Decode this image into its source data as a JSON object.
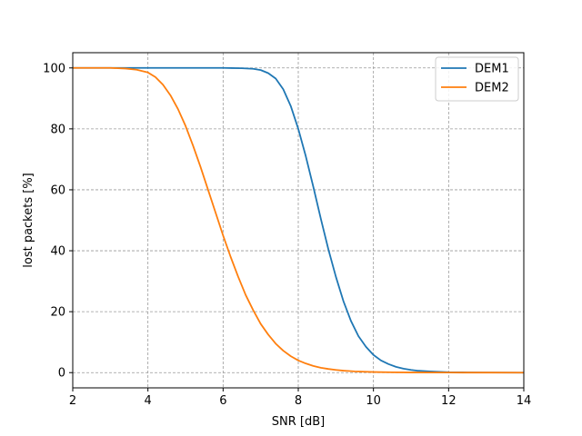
{
  "chart_data": {
    "type": "line",
    "xlabel": "SNR [dB]",
    "ylabel": "lost packets [%]",
    "xlim": [
      2,
      14
    ],
    "ylim": [
      -5,
      105
    ],
    "xticks": [
      2,
      4,
      6,
      8,
      10,
      12,
      14
    ],
    "yticks": [
      0,
      20,
      40,
      60,
      80,
      100
    ],
    "grid": true,
    "grid_style": "dashed",
    "legend_position": "top-right",
    "series": [
      {
        "name": "DEM1",
        "color": "#1f77b4",
        "x": [
          2,
          3,
          4,
          5,
          6,
          6.5,
          6.8,
          7.0,
          7.2,
          7.4,
          7.6,
          7.8,
          8.0,
          8.2,
          8.4,
          8.6,
          8.8,
          9.0,
          9.2,
          9.4,
          9.6,
          9.8,
          10.0,
          10.2,
          10.4,
          10.6,
          10.8,
          11.0,
          11.2,
          11.5,
          12.0,
          12.5,
          13.0,
          14.0
        ],
        "y": [
          100,
          100,
          100,
          100,
          100,
          99.9,
          99.7,
          99.3,
          98.3,
          96.5,
          93.0,
          87.5,
          80.0,
          71.0,
          61.0,
          50.5,
          40.5,
          31.5,
          23.5,
          17.0,
          12.0,
          8.5,
          5.8,
          4.0,
          2.8,
          1.9,
          1.3,
          0.9,
          0.6,
          0.4,
          0.15,
          0.07,
          0.03,
          0
        ]
      },
      {
        "name": "DEM2",
        "color": "#ff7f0e",
        "x": [
          2,
          3,
          3.4,
          3.7,
          4.0,
          4.2,
          4.4,
          4.6,
          4.8,
          5.0,
          5.2,
          5.4,
          5.6,
          5.8,
          6.0,
          6.2,
          6.4,
          6.6,
          6.8,
          7.0,
          7.2,
          7.4,
          7.6,
          7.8,
          8.0,
          8.2,
          8.4,
          8.6,
          8.8,
          9.0,
          9.2,
          9.5,
          10.0,
          10.5,
          11.0,
          12.0,
          13.0,
          14.0
        ],
        "y": [
          100,
          100,
          99.8,
          99.4,
          98.5,
          97.0,
          94.5,
          91.0,
          86.5,
          81.0,
          74.5,
          67.5,
          60.0,
          52.5,
          45.0,
          38.0,
          31.5,
          25.5,
          20.5,
          16.0,
          12.5,
          9.5,
          7.2,
          5.4,
          4.0,
          3.0,
          2.2,
          1.6,
          1.2,
          0.9,
          0.65,
          0.4,
          0.2,
          0.1,
          0.05,
          0.02,
          0.01,
          0
        ]
      }
    ]
  }
}
